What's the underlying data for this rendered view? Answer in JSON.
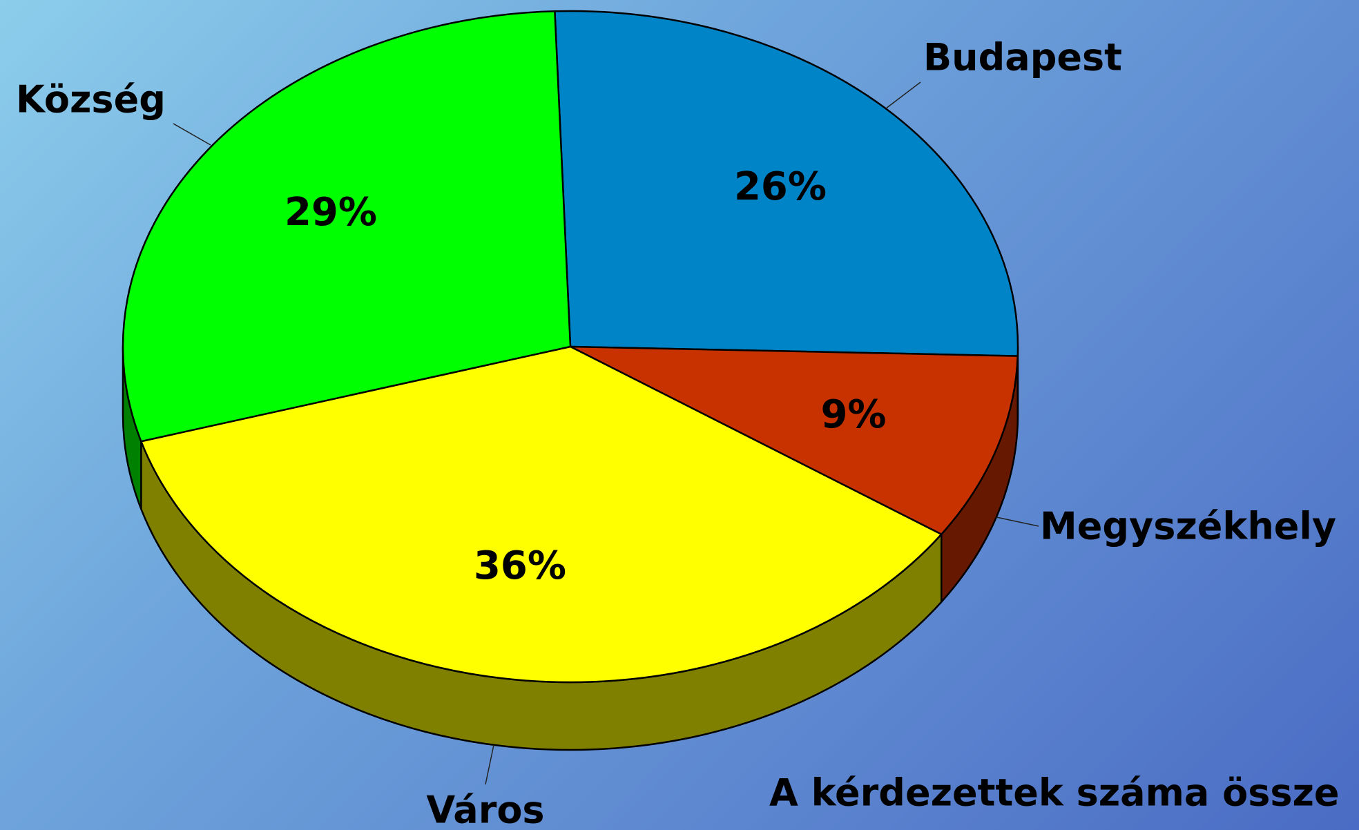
{
  "chart_data": {
    "type": "pie3d",
    "categories": [
      "Budapest",
      "Megyszékhely",
      "Város",
      "Község"
    ],
    "values": [
      26,
      9,
      36,
      29
    ],
    "value_labels": [
      "26%",
      "9%",
      "36%",
      "29%"
    ],
    "colors": [
      "#0084C8",
      "#C83200",
      "#FFFF00",
      "#00FF00"
    ],
    "side_colors": [
      "#004A70",
      "#661800",
      "#808000",
      "#008000"
    ],
    "note": "A kérdezettek száma össze"
  }
}
